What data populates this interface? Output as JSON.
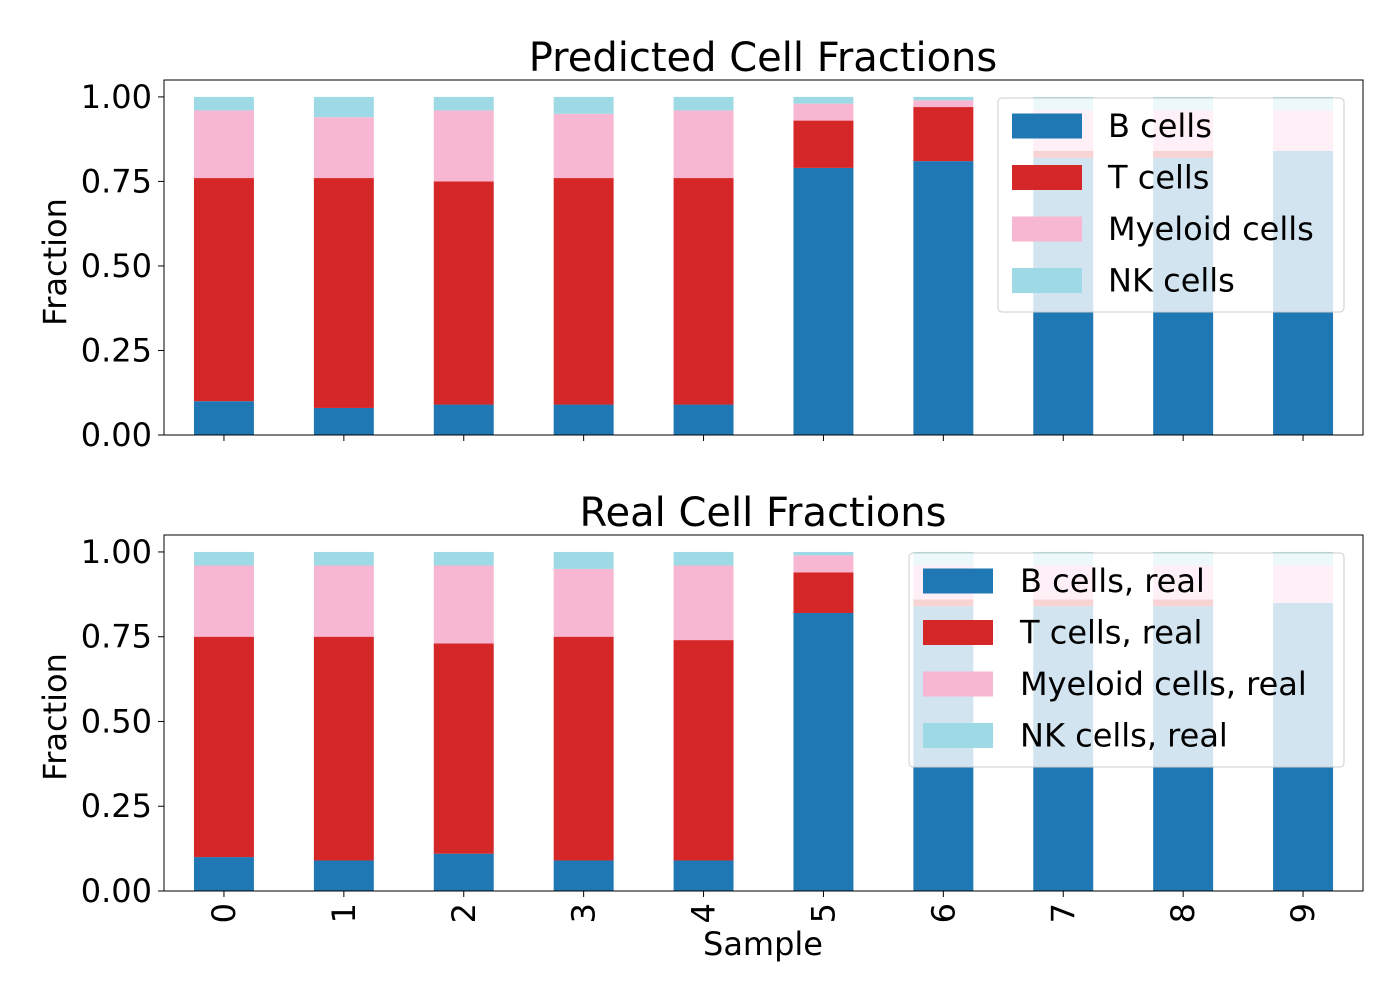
{
  "colors": {
    "B": "#1f77b4",
    "T": "#d62728",
    "Myeloid": "#f7b6d2",
    "NK": "#9edae5"
  },
  "shared": {
    "xlabel": "Sample",
    "ylabel": "Fraction",
    "yticks": [
      "0.00",
      "0.25",
      "0.50",
      "0.75",
      "1.00"
    ],
    "ylim": [
      0,
      1.05
    ]
  },
  "chart_data": [
    {
      "type": "bar",
      "stacked": true,
      "title": "Predicted Cell Fractions",
      "xlabel": "",
      "ylabel": "Fraction",
      "ylim": [
        0,
        1.05
      ],
      "categories": [
        "0",
        "1",
        "2",
        "3",
        "4",
        "5",
        "6",
        "7",
        "8",
        "9"
      ],
      "legend_position": "upper right",
      "series": [
        {
          "name": "B cells",
          "color_key": "B",
          "values": [
            0.1,
            0.08,
            0.09,
            0.09,
            0.09,
            0.79,
            0.81,
            0.82,
            0.82,
            0.84
          ]
        },
        {
          "name": "T cells",
          "color_key": "T",
          "values": [
            0.66,
            0.68,
            0.66,
            0.67,
            0.67,
            0.14,
            0.16,
            0.02,
            0.02,
            0.0
          ]
        },
        {
          "name": "Myeloid cells",
          "color_key": "Myeloid",
          "values": [
            0.2,
            0.18,
            0.21,
            0.19,
            0.2,
            0.05,
            0.02,
            0.12,
            0.12,
            0.12
          ]
        },
        {
          "name": "NK cells",
          "color_key": "NK",
          "values": [
            0.04,
            0.06,
            0.04,
            0.05,
            0.04,
            0.02,
            0.01,
            0.04,
            0.04,
            0.04
          ]
        }
      ]
    },
    {
      "type": "bar",
      "stacked": true,
      "title": "Real Cell Fractions",
      "xlabel": "Sample",
      "ylabel": "Fraction",
      "ylim": [
        0,
        1.05
      ],
      "categories": [
        "0",
        "1",
        "2",
        "3",
        "4",
        "5",
        "6",
        "7",
        "8",
        "9"
      ],
      "legend_position": "upper right",
      "series": [
        {
          "name": "B cells, real",
          "color_key": "B",
          "values": [
            0.1,
            0.09,
            0.11,
            0.09,
            0.09,
            0.82,
            0.84,
            0.84,
            0.84,
            0.85
          ]
        },
        {
          "name": "T cells, real",
          "color_key": "T",
          "values": [
            0.65,
            0.66,
            0.62,
            0.66,
            0.65,
            0.12,
            0.02,
            0.02,
            0.02,
            0.0
          ]
        },
        {
          "name": "Myeloid cells, real",
          "color_key": "Myeloid",
          "values": [
            0.21,
            0.21,
            0.23,
            0.2,
            0.22,
            0.05,
            0.1,
            0.1,
            0.1,
            0.11
          ]
        },
        {
          "name": "NK cells, real",
          "color_key": "NK",
          "values": [
            0.04,
            0.04,
            0.04,
            0.05,
            0.04,
            0.01,
            0.04,
            0.04,
            0.04,
            0.04
          ]
        }
      ]
    }
  ]
}
